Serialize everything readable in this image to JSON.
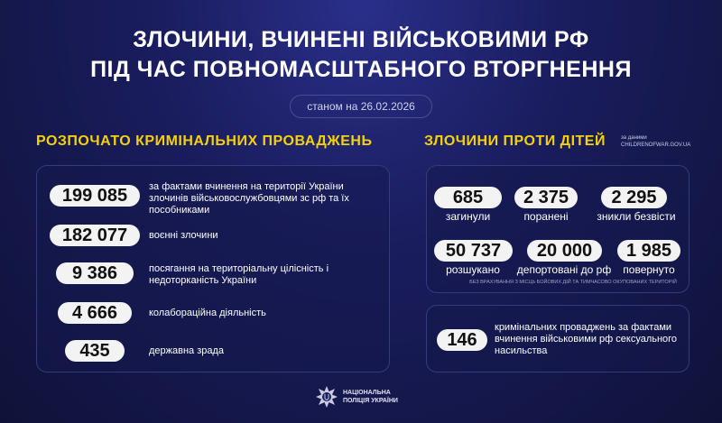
{
  "title": {
    "line1": "ЗЛОЧИНИ, ВЧИНЕНІ ВІЙСЬКОВИМИ РФ",
    "line2": "ПІД ЧАС ПОВНОМАСШТАБНОГО ВТОРГНЕННЯ"
  },
  "date": "станом на 26.02.2026",
  "criminal": {
    "heading": "РОЗПОЧАТО КРИМІНАЛЬНИХ ПРОВАДЖЕНЬ",
    "items": [
      {
        "value": "199 085",
        "label": "за фактами вчинення на території України злочинів військовослужбовцями зс рф та їх пособниками"
      },
      {
        "value": "182 077",
        "label": "воєнні злочини"
      },
      {
        "value": "9 386",
        "label": "посягання на територіальну цілісність і недоторканість України"
      },
      {
        "value": "4 666",
        "label": "колабораційна діяльність"
      },
      {
        "value": "435",
        "label": "державна зрада"
      }
    ]
  },
  "children": {
    "heading": "ЗЛОЧИНИ ПРОТИ ДІТЕЙ",
    "source_line1": "за даними",
    "source_line2": "CHILDRENOFWAR.GOV.UA",
    "stats": [
      {
        "value": "685",
        "label": "загинули"
      },
      {
        "value": "2 375",
        "label": "поранені"
      },
      {
        "value": "2 295",
        "label": "зникли безвісти"
      },
      {
        "value": "50 737",
        "label": "розшукано"
      },
      {
        "value": "20 000",
        "label": "депортовані до рф"
      },
      {
        "value": "1 985",
        "label": "повернуто"
      }
    ],
    "note": "БЕЗ ВРАХУВАННЯ З МІСЦЬ БОЙОВИХ ДІЙ ТА ТИМЧАСОВО ОКУПОВАНИХ ТЕРИТОРІЙ"
  },
  "sexual": {
    "value": "146",
    "label": "кримінальних проваджень за фактами вчинення військовими рф сексуального насильства"
  },
  "logo": {
    "line1": "НАЦІОНАЛЬНА",
    "line2": "ПОЛІЦІЯ УКРАЇНИ"
  },
  "colors": {
    "accent": "#f5d10a",
    "background": "#1a1d5e"
  }
}
